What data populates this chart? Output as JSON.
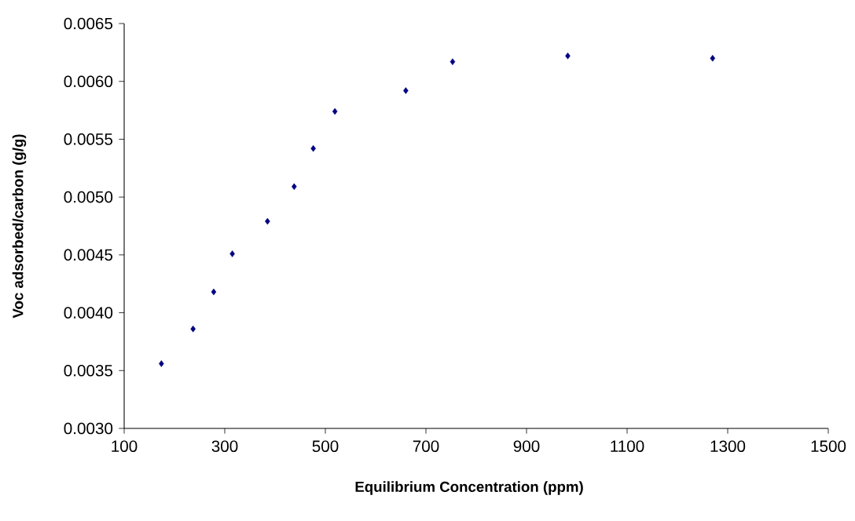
{
  "chart_data": {
    "type": "scatter",
    "xlabel": "Equilibrium Concentration (ppm)",
    "ylabel": "Voc adsorbed/carbon (g/g)",
    "marker": "diamond",
    "xlim": [
      100,
      1500
    ],
    "xticks": [
      100,
      300,
      500,
      700,
      900,
      1100,
      1300,
      1500
    ],
    "ylim": [
      0.003,
      0.0065
    ],
    "yticks": [
      {
        "value": 0.003,
        "label": "0.0030"
      },
      {
        "value": 0.0035,
        "label": "0.0035"
      },
      {
        "value": 0.004,
        "label": "0.0040"
      },
      {
        "value": 0.0045,
        "label": "0.0045"
      },
      {
        "value": 0.005,
        "label": "0.0050"
      },
      {
        "value": 0.0055,
        "label": "0.0055"
      },
      {
        "value": 0.006,
        "label": "0.0060"
      },
      {
        "value": 0.0065,
        "label": "0.0065"
      }
    ],
    "series": [
      {
        "color": "#000080",
        "x": [
          174,
          237,
          278,
          315,
          385,
          438,
          476,
          519,
          660,
          753,
          982,
          1270
        ],
        "values": [
          0.00356,
          0.00386,
          0.00418,
          0.00451,
          0.00479,
          0.00509,
          0.00542,
          0.00574,
          0.00592,
          0.00617,
          0.00622,
          0.0062
        ]
      }
    ]
  }
}
